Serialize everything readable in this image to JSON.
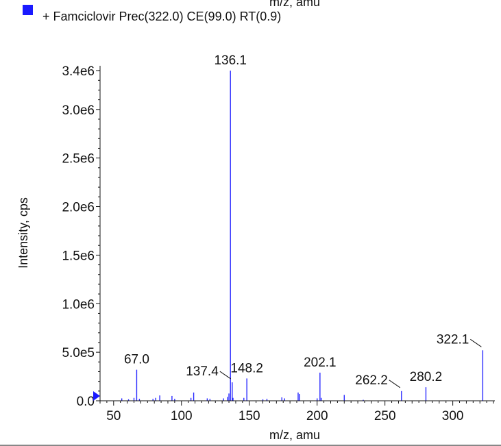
{
  "top_clip_label": "m/z, amu",
  "legend": {
    "label": "+ Famciclovir Prec(322.0) CE(99.0) RT(0.9)",
    "swatch_color": "#1a1aff"
  },
  "chart_data": {
    "type": "bar",
    "xlabel": "m/z, amu",
    "ylabel": "Intensity, cps",
    "xlim": [
      40,
      331
    ],
    "ylim": [
      0,
      3450000
    ],
    "x_ticks": [
      50,
      100,
      150,
      200,
      250,
      300
    ],
    "x_tick_labels": [
      "50",
      "100",
      "150",
      "200",
      "250",
      "300"
    ],
    "y_ticks": [
      0,
      500000,
      1000000,
      1500000,
      2000000,
      2500000,
      3000000,
      3400000
    ],
    "y_tick_labels": [
      "0.0",
      "5.0e5",
      "1.0e6",
      "1.5e6",
      "2.0e6",
      "2.5e6",
      "3.0e6",
      "3.4e6"
    ],
    "bar_color": "#2a2aff",
    "axis_marker_color": "#1a1aff",
    "peaks": [
      {
        "x": 56.0,
        "y": 25000
      },
      {
        "x": 61.0,
        "y": 15000
      },
      {
        "x": 65.0,
        "y": 30000
      },
      {
        "x": 67.0,
        "y": 320000
      },
      {
        "x": 69.0,
        "y": 20000
      },
      {
        "x": 79.0,
        "y": 20000
      },
      {
        "x": 81.0,
        "y": 30000
      },
      {
        "x": 84.0,
        "y": 55000
      },
      {
        "x": 93.0,
        "y": 50000
      },
      {
        "x": 95.0,
        "y": 20000
      },
      {
        "x": 107.0,
        "y": 30000
      },
      {
        "x": 109.0,
        "y": 85000
      },
      {
        "x": 119.0,
        "y": 25000
      },
      {
        "x": 121.0,
        "y": 20000
      },
      {
        "x": 131.0,
        "y": 25000
      },
      {
        "x": 134.0,
        "y": 40000
      },
      {
        "x": 135.0,
        "y": 75000
      },
      {
        "x": 136.1,
        "y": 3400000
      },
      {
        "x": 137.4,
        "y": 190000
      },
      {
        "x": 138.0,
        "y": 30000
      },
      {
        "x": 146.0,
        "y": 30000
      },
      {
        "x": 148.2,
        "y": 230000
      },
      {
        "x": 160.0,
        "y": 15000
      },
      {
        "x": 163.0,
        "y": 20000
      },
      {
        "x": 174.0,
        "y": 35000
      },
      {
        "x": 176.0,
        "y": 25000
      },
      {
        "x": 186.0,
        "y": 85000
      },
      {
        "x": 187.0,
        "y": 70000
      },
      {
        "x": 200.0,
        "y": 25000
      },
      {
        "x": 202.1,
        "y": 290000
      },
      {
        "x": 203.0,
        "y": 30000
      },
      {
        "x": 220.0,
        "y": 60000
      },
      {
        "x": 234.0,
        "y": 10000
      },
      {
        "x": 262.2,
        "y": 100000
      },
      {
        "x": 280.2,
        "y": 140000
      },
      {
        "x": 322.1,
        "y": 520000
      }
    ],
    "peak_labels": [
      {
        "text": "136.1",
        "x": 136.1,
        "y": 3400000,
        "leader": false
      },
      {
        "text": "67.0",
        "x": 67.0,
        "y": 320000,
        "leader": false
      },
      {
        "text": "137.4",
        "x": 137.4,
        "y": 190000,
        "leader": true
      },
      {
        "text": "148.2",
        "x": 148.2,
        "y": 230000,
        "leader": false
      },
      {
        "text": "202.1",
        "x": 202.1,
        "y": 290000,
        "leader": false
      },
      {
        "text": "262.2",
        "x": 262.2,
        "y": 100000,
        "leader": true
      },
      {
        "text": "280.2",
        "x": 280.2,
        "y": 140000,
        "leader": false
      },
      {
        "text": "322.1",
        "x": 322.1,
        "y": 520000,
        "leader": true
      }
    ]
  }
}
